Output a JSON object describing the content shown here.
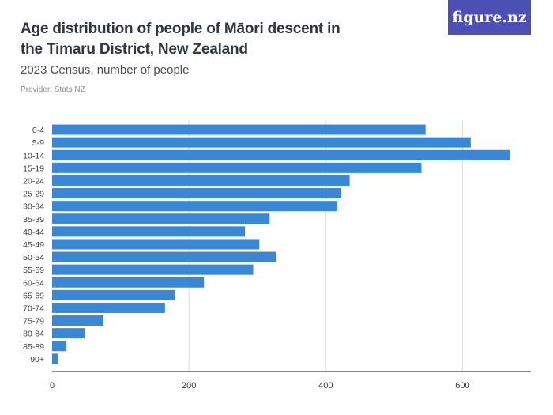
{
  "header": {
    "title": "Age distribution of people of Māori descent in the Timaru District, New Zealand",
    "subtitle": "2023 Census, number of people",
    "provider": "Provider: Stats NZ",
    "logo": "figure.nz"
  },
  "colors": {
    "bar": "#3a87d6",
    "grid": "#dddddd",
    "axis": "#444444",
    "logo_bg": "#4e4fb5"
  },
  "chart_data": {
    "type": "bar",
    "orientation": "horizontal",
    "categories": [
      "0-4",
      "5-9",
      "10-14",
      "15-19",
      "20-24",
      "25-29",
      "30-34",
      "35-39",
      "40-44",
      "45-49",
      "50-54",
      "55-59",
      "60-64",
      "65-69",
      "70-74",
      "75-79",
      "80-84",
      "85-89",
      "90+"
    ],
    "values": [
      546,
      612,
      669,
      540,
      435,
      423,
      417,
      318,
      282,
      303,
      327,
      294,
      222,
      180,
      165,
      75,
      48,
      21,
      9
    ],
    "xticks": [
      0,
      200,
      400,
      600
    ],
    "xlim": [
      0,
      700
    ],
    "grid": true
  }
}
